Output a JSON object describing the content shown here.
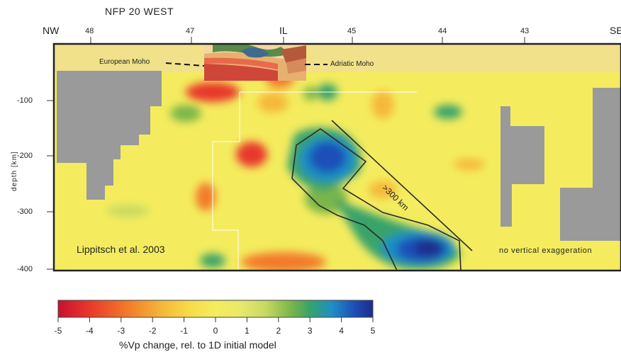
{
  "title": "NFP 20 WEST",
  "edges": {
    "left": "NW",
    "right": "SE"
  },
  "top_labels": [
    "48",
    "47",
    "IL",
    "45",
    "44",
    "43"
  ],
  "depth_ticks": [
    "-100",
    "-200",
    "-300",
    "-400"
  ],
  "depth_label": "depth [km]",
  "annotations": {
    "european_moho": "European Moho",
    "adriatic_moho": "Adriatic Moho",
    "citation": "Lippitsch et al. 2003",
    "slab_length": ">300 km",
    "exaggeration": "no vertical exaggeration"
  },
  "colorbar": {
    "ticks": [
      "-5",
      "-4",
      "-3",
      "-2",
      "-1",
      "0",
      "1",
      "2",
      "3",
      "4",
      "5"
    ],
    "title": "%Vp change, rel. to 1D initial model",
    "colors": [
      "#c8102e",
      "#e8392a",
      "#f27a2a",
      "#f5b83a",
      "#f7dc4a",
      "#f4ec5e",
      "#e8e96a",
      "#c6d862",
      "#7ab648",
      "#37a36b",
      "#1f8fc4",
      "#1f4fb8",
      "#1a2d8c"
    ]
  },
  "colors": {
    "background": "#f4ec5e",
    "gray": "#9a9a9a",
    "crust_band": "#f0e18a"
  }
}
